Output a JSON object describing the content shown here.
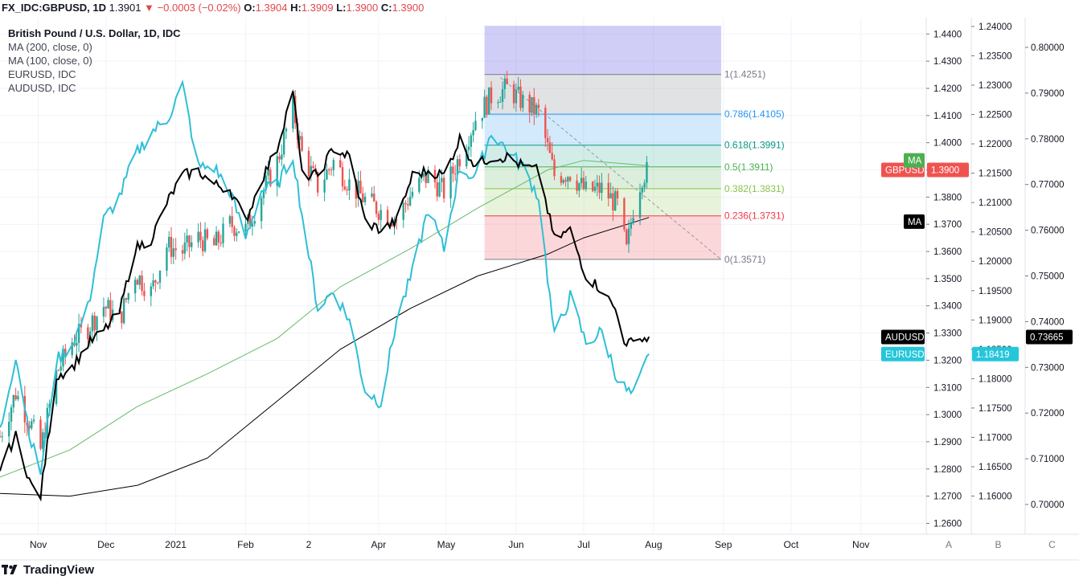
{
  "header": {
    "symbol": "FX_IDC:GBPUSD, 1D",
    "price": "1.3901",
    "change_arrow": "▼",
    "change": "−0.0003 (−0.02%)",
    "open_label": "O:",
    "open": "1.3904",
    "high_label": "H:",
    "high": "1.3909",
    "low_label": "L:",
    "low": "1.3900",
    "close_label": "C:",
    "close": "1.3900"
  },
  "legend": [
    "British Pound / U.S. Dollar, 1D, IDC",
    "MA (200, close, 0)",
    "MA (100, close, 0)",
    "EURUSD, IDC",
    "AUDUSD, IDC"
  ],
  "price_labels": {
    "gbpusd": {
      "text": "GBPUSD",
      "value": "1.3900",
      "color": "#ef5350"
    },
    "ma_green": {
      "text": "MA",
      "color": "#4caf50"
    },
    "ma_black": {
      "text": "MA",
      "color": "#000000"
    },
    "audusd": {
      "text": "AUDUSD",
      "value": "0.73665",
      "color": "#000000"
    },
    "eurusd": {
      "text": "EURUSD",
      "value": "1.18419",
      "color": "#26c6da"
    }
  },
  "axis_pane_labels": [
    "A",
    "B",
    "C"
  ],
  "footer": {
    "brand": "TradingView",
    "logo_icon": "tradingview-logo-icon"
  },
  "colors": {
    "up": "#26a69a",
    "down": "#ef5350",
    "eurusd": "#2fbfd6",
    "audusd": "#000000",
    "ma100": "#66bb6a",
    "ma200": "#000000"
  },
  "chart_data": {
    "type": "line",
    "title": "British Pound / U.S. Dollar, 1D, IDC",
    "x_ticks": [
      "Nov",
      "Dec",
      "2021",
      "Feb",
      "2",
      "Apr",
      "May",
      "Jun",
      "Jul",
      "Aug",
      "Sep",
      "Oct",
      "Nov"
    ],
    "x_range": [
      "2020-10-15",
      "2021-11-30"
    ],
    "y_axes": [
      {
        "pane": "A",
        "series": "GBPUSD",
        "ylim": [
          1.256,
          1.446
        ],
        "ticks": [
          1.26,
          1.27,
          1.28,
          1.29,
          1.3,
          1.31,
          1.32,
          1.33,
          1.34,
          1.35,
          1.36,
          1.37,
          1.38,
          1.39,
          1.4,
          1.41,
          1.42,
          1.43,
          1.44
        ],
        "tick_labels": [
          "1.2600",
          "1.2700",
          "1.2800",
          "1.2900",
          "1.3000",
          "1.3100",
          "1.3200",
          "1.3300",
          "1.3400",
          "1.3500",
          "1.3600",
          "1.3700",
          "1.3800",
          "1.3900",
          "1.4000",
          "1.4100",
          "1.4200",
          "1.4300",
          "1.4400"
        ]
      },
      {
        "pane": "B",
        "series": "EURUSD",
        "ylim": [
          1.1535,
          1.2415
        ],
        "ticks": [
          1.16,
          1.165,
          1.17,
          1.175,
          1.18,
          1.185,
          1.19,
          1.195,
          1.2,
          1.205,
          1.21,
          1.215,
          1.22,
          1.225,
          1.23,
          1.235,
          1.24
        ],
        "tick_labels": [
          "1.16000",
          "1.16500",
          "1.17000",
          "1.17500",
          "1.18000",
          "1.18500",
          "1.19000",
          "1.19500",
          "1.20000",
          "1.20500",
          "1.21000",
          "1.21500",
          "1.22000",
          "1.22500",
          "1.23000",
          "1.23500",
          "1.24000"
        ]
      },
      {
        "pane": "C",
        "series": "AUDUSD",
        "ylim": [
          0.6935,
          0.8065
        ],
        "ticks": [
          0.7,
          0.71,
          0.72,
          0.73,
          0.74,
          0.75,
          0.76,
          0.77,
          0.78,
          0.79,
          0.8
        ],
        "tick_labels": [
          "0.70000",
          "0.71000",
          "0.72000",
          "0.73000",
          "0.74000",
          "0.75000",
          "0.76000",
          "0.77000",
          "0.78000",
          "0.79000",
          "0.80000"
        ]
      }
    ],
    "fibonacci": {
      "start_date": "2021-05-18",
      "end_date": "2021-08-31",
      "levels": [
        {
          "ratio": "1",
          "value": 1.4251,
          "label": "1(1.4251)",
          "color": "#787b86"
        },
        {
          "ratio": "0.786",
          "value": 1.4105,
          "label": "0.786(1.4105)",
          "color": "#2196f3"
        },
        {
          "ratio": "0.618",
          "value": 1.3991,
          "label": "0.618(1.3991)",
          "color": "#089981"
        },
        {
          "ratio": "0.5",
          "value": 1.3911,
          "label": "0.5(1.3911)",
          "color": "#4caf50"
        },
        {
          "ratio": "0.382",
          "value": 1.3831,
          "label": "0.382(1.3831)",
          "color": "#8bc34a"
        },
        {
          "ratio": "0.236",
          "value": 1.3731,
          "label": "0.236(1.3731)",
          "color": "#f23645"
        },
        {
          "ratio": "0",
          "value": 1.3571,
          "label": "0(1.3571)",
          "color": "#787b86"
        }
      ],
      "extension_top": 1.443,
      "trendline": {
        "from": [
          "2021-05-25",
          1.424
        ],
        "to": [
          "2021-08-31",
          1.3571
        ]
      }
    },
    "series": [
      {
        "name": "GBPUSD",
        "kind": "candlestick",
        "pane": "A",
        "points": [
          [
            "2020-10-15",
            1.292
          ],
          [
            "2020-10-22",
            1.308
          ],
          [
            "2020-10-29",
            1.296
          ],
          [
            "2020-11-02",
            1.287
          ],
          [
            "2020-11-09",
            1.315
          ],
          [
            "2020-11-16",
            1.327
          ],
          [
            "2020-11-23",
            1.332
          ],
          [
            "2020-11-30",
            1.34
          ],
          [
            "2020-12-07",
            1.335
          ],
          [
            "2020-12-14",
            1.352
          ],
          [
            "2020-12-21",
            1.345
          ],
          [
            "2020-12-28",
            1.362
          ],
          [
            "2021-01-04",
            1.36
          ],
          [
            "2021-01-11",
            1.365
          ],
          [
            "2021-01-18",
            1.362
          ],
          [
            "2021-01-25",
            1.37
          ],
          [
            "2021-02-01",
            1.368
          ],
          [
            "2021-02-08",
            1.381
          ],
          [
            "2021-02-15",
            1.393
          ],
          [
            "2021-02-22",
            1.413
          ],
          [
            "2021-02-26",
            1.396
          ],
          [
            "2021-03-05",
            1.384
          ],
          [
            "2021-03-12",
            1.393
          ],
          [
            "2021-03-19",
            1.385
          ],
          [
            "2021-03-26",
            1.379
          ],
          [
            "2021-04-02",
            1.375
          ],
          [
            "2021-04-09",
            1.372
          ],
          [
            "2021-04-16",
            1.382
          ],
          [
            "2021-04-23",
            1.388
          ],
          [
            "2021-04-30",
            1.382
          ],
          [
            "2021-05-07",
            1.395
          ],
          [
            "2021-05-14",
            1.409
          ],
          [
            "2021-05-21",
            1.417
          ],
          [
            "2021-05-28",
            1.42
          ],
          [
            "2021-06-04",
            1.415
          ],
          [
            "2021-06-11",
            1.411
          ],
          [
            "2021-06-18",
            1.388
          ],
          [
            "2021-06-25",
            1.389
          ],
          [
            "2021-07-02",
            1.382
          ],
          [
            "2021-07-09",
            1.383
          ],
          [
            "2021-07-16",
            1.377
          ],
          [
            "2021-07-20",
            1.36
          ],
          [
            "2021-07-23",
            1.376
          ],
          [
            "2021-07-27",
            1.388
          ],
          [
            "2021-07-30",
            1.39
          ]
        ]
      },
      {
        "name": "EURUSD",
        "kind": "line",
        "pane": "B",
        "points": [
          [
            "2020-10-15",
            1.171
          ],
          [
            "2020-10-22",
            1.184
          ],
          [
            "2020-10-29",
            1.169
          ],
          [
            "2020-11-02",
            1.164
          ],
          [
            "2020-11-09",
            1.183
          ],
          [
            "2020-11-16",
            1.186
          ],
          [
            "2020-11-23",
            1.192
          ],
          [
            "2020-11-30",
            1.207
          ],
          [
            "2020-12-07",
            1.211
          ],
          [
            "2020-12-14",
            1.218
          ],
          [
            "2020-12-21",
            1.222
          ],
          [
            "2020-12-28",
            1.224
          ],
          [
            "2021-01-04",
            1.23
          ],
          [
            "2021-01-11",
            1.216
          ],
          [
            "2021-01-18",
            1.216
          ],
          [
            "2021-01-25",
            1.212
          ],
          [
            "2021-02-01",
            1.204
          ],
          [
            "2021-02-08",
            1.212
          ],
          [
            "2021-02-15",
            1.213
          ],
          [
            "2021-02-22",
            1.218
          ],
          [
            "2021-02-26",
            1.208
          ],
          [
            "2021-03-05",
            1.192
          ],
          [
            "2021-03-12",
            1.195
          ],
          [
            "2021-03-19",
            1.19
          ],
          [
            "2021-03-26",
            1.178
          ],
          [
            "2021-04-02",
            1.176
          ],
          [
            "2021-04-09",
            1.19
          ],
          [
            "2021-04-16",
            1.198
          ],
          [
            "2021-04-23",
            1.209
          ],
          [
            "2021-04-30",
            1.202
          ],
          [
            "2021-05-07",
            1.216
          ],
          [
            "2021-05-14",
            1.214
          ],
          [
            "2021-05-21",
            1.222
          ],
          [
            "2021-05-28",
            1.219
          ],
          [
            "2021-06-04",
            1.216
          ],
          [
            "2021-06-11",
            1.211
          ],
          [
            "2021-06-18",
            1.187
          ],
          [
            "2021-06-25",
            1.194
          ],
          [
            "2021-07-02",
            1.186
          ],
          [
            "2021-07-09",
            1.188
          ],
          [
            "2021-07-16",
            1.18
          ],
          [
            "2021-07-20",
            1.178
          ],
          [
            "2021-07-23",
            1.177
          ],
          [
            "2021-07-27",
            1.181
          ],
          [
            "2021-07-30",
            1.1842
          ]
        ]
      },
      {
        "name": "AUDUSD",
        "kind": "line",
        "pane": "C",
        "points": [
          [
            "2020-10-15",
            0.708
          ],
          [
            "2020-10-22",
            0.715
          ],
          [
            "2020-10-29",
            0.704
          ],
          [
            "2020-11-02",
            0.702
          ],
          [
            "2020-11-09",
            0.728
          ],
          [
            "2020-11-16",
            0.73
          ],
          [
            "2020-11-23",
            0.735
          ],
          [
            "2020-11-30",
            0.738
          ],
          [
            "2020-12-07",
            0.742
          ],
          [
            "2020-12-14",
            0.756
          ],
          [
            "2020-12-21",
            0.758
          ],
          [
            "2020-12-28",
            0.766
          ],
          [
            "2021-01-04",
            0.772
          ],
          [
            "2021-01-11",
            0.773
          ],
          [
            "2021-01-18",
            0.77
          ],
          [
            "2021-01-25",
            0.769
          ],
          [
            "2021-02-01",
            0.762
          ],
          [
            "2021-02-08",
            0.771
          ],
          [
            "2021-02-15",
            0.778
          ],
          [
            "2021-02-22",
            0.791
          ],
          [
            "2021-02-26",
            0.772
          ],
          [
            "2021-03-05",
            0.772
          ],
          [
            "2021-03-12",
            0.778
          ],
          [
            "2021-03-19",
            0.776
          ],
          [
            "2021-03-26",
            0.762
          ],
          [
            "2021-04-02",
            0.76
          ],
          [
            "2021-04-09",
            0.762
          ],
          [
            "2021-04-16",
            0.772
          ],
          [
            "2021-04-23",
            0.773
          ],
          [
            "2021-04-30",
            0.772
          ],
          [
            "2021-05-07",
            0.78
          ],
          [
            "2021-05-14",
            0.774
          ],
          [
            "2021-05-21",
            0.776
          ],
          [
            "2021-05-28",
            0.776
          ],
          [
            "2021-06-04",
            0.774
          ],
          [
            "2021-06-11",
            0.773
          ],
          [
            "2021-06-18",
            0.758
          ],
          [
            "2021-06-25",
            0.76
          ],
          [
            "2021-07-02",
            0.75
          ],
          [
            "2021-07-09",
            0.747
          ],
          [
            "2021-07-16",
            0.742
          ],
          [
            "2021-07-20",
            0.734
          ],
          [
            "2021-07-23",
            0.737
          ],
          [
            "2021-07-27",
            0.736
          ],
          [
            "2021-07-30",
            0.7367
          ]
        ]
      },
      {
        "name": "MA (100, close, 0)",
        "kind": "line",
        "pane": "A",
        "points": [
          [
            "2020-10-15",
            1.277
          ],
          [
            "2020-11-15",
            1.287
          ],
          [
            "2020-12-15",
            1.303
          ],
          [
            "2021-01-15",
            1.315
          ],
          [
            "2021-02-15",
            1.328
          ],
          [
            "2021-03-15",
            1.347
          ],
          [
            "2021-04-15",
            1.361
          ],
          [
            "2021-05-15",
            1.376
          ],
          [
            "2021-06-15",
            1.39
          ],
          [
            "2021-07-01",
            1.3935
          ],
          [
            "2021-07-30",
            1.3915
          ]
        ]
      },
      {
        "name": "MA (200, close, 0)",
        "kind": "line",
        "pane": "A",
        "points": [
          [
            "2020-10-15",
            1.271
          ],
          [
            "2020-11-15",
            1.27
          ],
          [
            "2020-12-15",
            1.274
          ],
          [
            "2021-01-15",
            1.284
          ],
          [
            "2021-02-15",
            1.305
          ],
          [
            "2021-03-15",
            1.324
          ],
          [
            "2021-04-15",
            1.339
          ],
          [
            "2021-05-15",
            1.351
          ],
          [
            "2021-06-15",
            1.359
          ],
          [
            "2021-07-01",
            1.365
          ],
          [
            "2021-07-30",
            1.3725
          ]
        ]
      }
    ]
  }
}
